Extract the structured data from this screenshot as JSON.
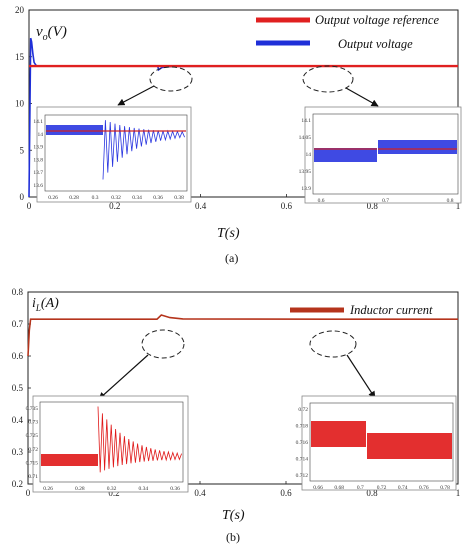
{
  "chart_data": [
    {
      "type": "line",
      "panel_label": "(a)",
      "ylabel_var": "v",
      "ylabel_sub": "o",
      "ylabel_unit": "(V)",
      "xlabel": "T(s)",
      "xlim": [
        0,
        1
      ],
      "ylim": [
        0,
        20
      ],
      "xticks": [
        0,
        0.2,
        0.4,
        0.6,
        0.8,
        1
      ],
      "yticks": [
        0,
        5,
        10,
        15,
        20
      ],
      "legend_position": "top-right",
      "series": [
        {
          "name": "Output voltage reference",
          "color": "#e02020",
          "x": [
            0,
            1
          ],
          "y": [
            14,
            14
          ]
        },
        {
          "name": "Output voltage",
          "color": "#1f2fd8",
          "x": [
            0,
            0.002,
            0.004,
            0.006,
            0.009,
            0.012,
            0.016,
            0.02,
            0.3,
            0.302,
            0.31,
            0.33,
            0.36,
            0.38,
            0.7,
            0.75,
            0.9,
            1
          ],
          "y": [
            0,
            9,
            17,
            16.6,
            15.3,
            14.4,
            14.1,
            14,
            14,
            13.6,
            13.85,
            13.95,
            13.98,
            13.98,
            14,
            14.02,
            14.02,
            14.02
          ]
        }
      ],
      "insets": [
        {
          "xticks": [
            "0.26",
            "0.28",
            "0.3",
            "0.32",
            "0.34",
            "0.36",
            "0.38"
          ],
          "yticks": [
            "14.1",
            "14",
            "13.9",
            "13.8",
            "13.7",
            "13.6"
          ]
        },
        {
          "xticks": [
            "0.6",
            "0.7",
            "0.8"
          ],
          "yticks": [
            "14.1",
            "14.05",
            "14",
            "13.95",
            "13.9"
          ]
        }
      ]
    },
    {
      "type": "line",
      "panel_label": "(b)",
      "ylabel_var": "i",
      "ylabel_sub": "L",
      "ylabel_unit": "(A)",
      "xlabel": "T(s)",
      "xlim": [
        0,
        1
      ],
      "ylim": [
        0.2,
        0.8
      ],
      "xticks": [
        0,
        0.2,
        0.4,
        0.6,
        0.8,
        1
      ],
      "yticks": [
        0.2,
        0.3,
        0.4,
        0.5,
        0.6,
        0.7,
        0.8
      ],
      "legend_position": "top-right",
      "series": [
        {
          "name": "Inductor current",
          "color": "#b5341c",
          "x": [
            0,
            0.003,
            0.006,
            0.01,
            0.3,
            0.31,
            0.33,
            0.36,
            0.7,
            1
          ],
          "y": [
            0.6,
            0.68,
            0.715,
            0.715,
            0.715,
            0.728,
            0.72,
            0.716,
            0.715,
            0.715
          ]
        }
      ],
      "insets": [
        {
          "xticks": [
            "0.26",
            "0.28",
            "0.32",
            "0.34",
            "0.36"
          ],
          "yticks": [
            "0.735",
            "0.73",
            "0.725",
            "0.72",
            "0.715",
            "0.71"
          ]
        },
        {
          "xticks": [
            "0.66",
            "0.68",
            "0.7",
            "0.72",
            "0.74",
            "0.76",
            "0.78"
          ],
          "yticks": [
            "0.72",
            "0.718",
            "0.716",
            "0.714",
            "0.712"
          ]
        }
      ]
    }
  ]
}
